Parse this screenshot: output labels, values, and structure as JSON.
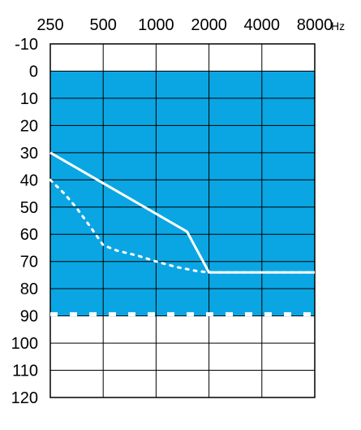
{
  "chart_data": {
    "type": "line",
    "title": "",
    "x_unit": "Hz",
    "x_ticks": [
      "250",
      "500",
      "1000",
      "2000",
      "4000",
      "8000"
    ],
    "y_ticks": [
      "-10",
      "0",
      "10",
      "20",
      "30",
      "40",
      "50",
      "60",
      "70",
      "80",
      "90",
      "100",
      "110",
      "120"
    ],
    "ylim": [
      -10,
      120
    ],
    "y_inverted": true,
    "x_scale": "log",
    "grid": true,
    "shaded_band": {
      "from": 0,
      "to": 90,
      "color": "#0aa6e3"
    },
    "band_edge": {
      "value": 90,
      "style": "dashed",
      "color": "#ffffff"
    },
    "series": [
      {
        "style": "solid",
        "color": "#ffffff",
        "x": [
          250,
          1500,
          2000,
          8000
        ],
        "y": [
          30,
          59,
          74,
          74
        ]
      },
      {
        "style": "dotted",
        "color": "#ffffff",
        "x": [
          250,
          300,
          350,
          420,
          500,
          600,
          800,
          1000,
          1300,
          1700,
          2000,
          8000
        ],
        "y": [
          40,
          45,
          50,
          57,
          64,
          66,
          68,
          70,
          72,
          73.5,
          74,
          74
        ]
      }
    ]
  }
}
